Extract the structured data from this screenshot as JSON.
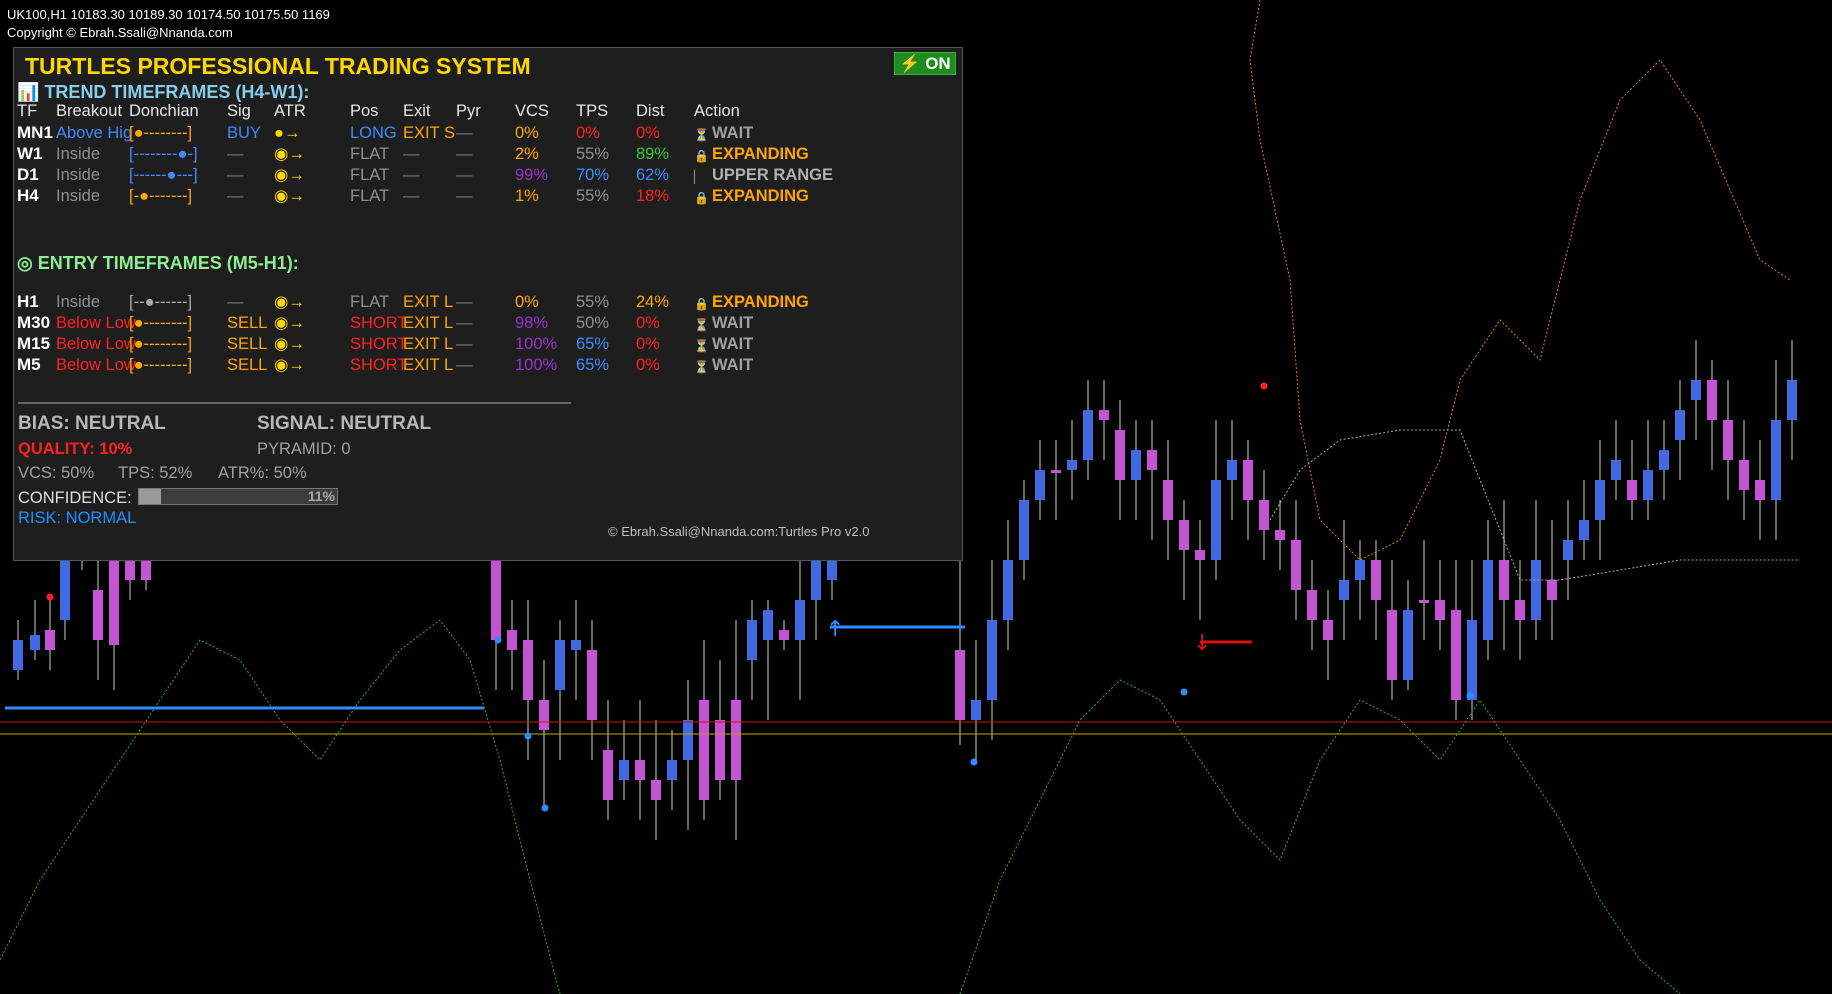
{
  "header": {
    "line1": "UK100,H1  10183.30 10189.30 10174.50 10175.50  1169",
    "line2": "Copyright © Ebrah.Ssali@Nnanda.com"
  },
  "panel": {
    "title": "TURTLES PROFESSIONAL TRADING SYSTEM",
    "on_label": "ON",
    "trend_header": "TREND TIMEFRAMES (H4-W1):",
    "entry_header": "ENTRY TIMEFRAMES (M5-H1):",
    "columns": [
      "TF",
      "Breakout",
      "Donchian",
      "Sig",
      "ATR",
      "Pos",
      "Exit",
      "Pyr",
      "VCS",
      "TPS",
      "Dist",
      "Action"
    ],
    "trend_rows": [
      {
        "tf": "MN1",
        "breakout": "Above Hig",
        "donchian": "[●--------]",
        "sig": "BUY",
        "atr": "●→",
        "pos": "LONG",
        "exit": "EXIT S",
        "pyr": "—",
        "vcs": "0%",
        "tps": "0%",
        "dist": "0%",
        "action": "WAIT",
        "icon": "hourglass-icon"
      },
      {
        "tf": "W1",
        "breakout": "Inside",
        "donchian": "[--------●-]",
        "sig": "—",
        "atr": "◉→",
        "pos": "FLAT",
        "exit": "—",
        "pyr": "—",
        "vcs": "2%",
        "tps": "55%",
        "dist": "89%",
        "action": "EXPANDING",
        "icon": "lock-icon"
      },
      {
        "tf": "D1",
        "breakout": "Inside",
        "donchian": "[------●---]",
        "sig": "—",
        "atr": "◉→",
        "pos": "FLAT",
        "exit": "—",
        "pyr": "—",
        "vcs": "99%",
        "tps": "70%",
        "dist": "62%",
        "action": "UPPER RANGE",
        "icon": "bar-icon"
      },
      {
        "tf": "H4",
        "breakout": "Inside",
        "donchian": "[-●-------]",
        "sig": "—",
        "atr": "◉→",
        "pos": "FLAT",
        "exit": "—",
        "pyr": "—",
        "vcs": "1%",
        "tps": "55%",
        "dist": "18%",
        "action": "EXPANDING",
        "icon": "lock-icon"
      }
    ],
    "entry_rows": [
      {
        "tf": "H1",
        "breakout": "Inside",
        "donchian": "[--●------]",
        "sig": "—",
        "atr": "◉→",
        "pos": "FLAT",
        "exit": "EXIT L",
        "pyr": "—",
        "vcs": "0%",
        "tps": "55%",
        "dist": "24%",
        "action": "EXPANDING",
        "icon": "lock-icon"
      },
      {
        "tf": "M30",
        "breakout": "Below Low",
        "donchian": "[●--------]",
        "sig": "SELL",
        "atr": "◉→",
        "pos": "SHORT",
        "exit": "EXIT L",
        "pyr": "—",
        "vcs": "98%",
        "tps": "50%",
        "dist": "0%",
        "action": "WAIT",
        "icon": "hourglass-icon"
      },
      {
        "tf": "M15",
        "breakout": "Below Low",
        "donchian": "[●--------]",
        "sig": "SELL",
        "atr": "◉→",
        "pos": "SHORT",
        "exit": "EXIT L",
        "pyr": "—",
        "vcs": "100%",
        "tps": "65%",
        "dist": "0%",
        "action": "WAIT",
        "icon": "hourglass-icon"
      },
      {
        "tf": "M5",
        "breakout": "Below Low",
        "donchian": "[●--------]",
        "sig": "SELL",
        "atr": "◉→",
        "pos": "SHORT",
        "exit": "EXIT L",
        "pyr": "—",
        "vcs": "100%",
        "tps": "65%",
        "dist": "0%",
        "action": "WAIT",
        "icon": "hourglass-icon"
      }
    ],
    "bias": "BIAS: NEUTRAL",
    "signal": "SIGNAL: NEUTRAL",
    "quality": "QUALITY: 10%",
    "pyramid": "PYRAMID: 0",
    "vcs_stat": "VCS: 50%",
    "tps_stat": "TPS: 52%",
    "atr_stat": "ATR%: 50%",
    "confidence_label": "CONFIDENCE:",
    "confidence_pct": "11%",
    "confidence_value": 0.11,
    "risk": "RISK: NORMAL",
    "copyright": "© Ebrah.Ssali@Nnanda.com:Turtles Pro v2.0"
  },
  "colors": {
    "bull_candle": "#4169e1",
    "bear_candle": "#c454d4",
    "title": "#ffd700",
    "trend_header": "#87ceeb",
    "entry_header": "#90ee90",
    "quality": "#ff2020",
    "risk": "#1e90ff",
    "on_button": "#1e8c1e"
  }
}
